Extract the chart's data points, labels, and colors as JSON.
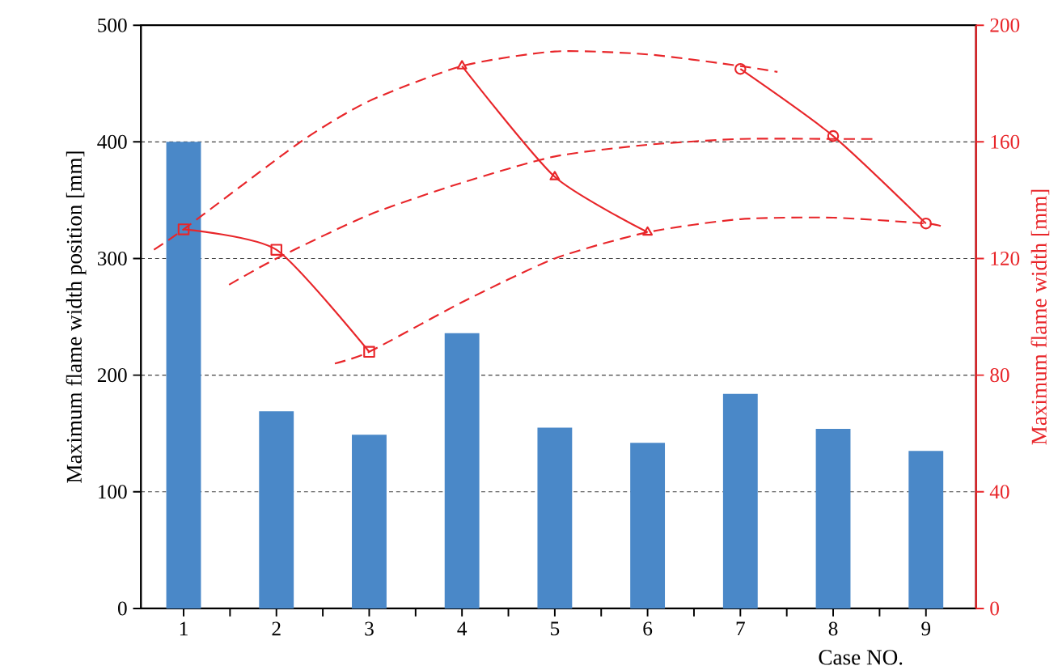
{
  "chart_data": {
    "type": "bar",
    "xlabel": "Case NO.",
    "ylabel": "Maximum flame width position  [mm]",
    "y2label": "Maximum flame width [mm]",
    "x": [
      1,
      2,
      3,
      4,
      5,
      6,
      7,
      8,
      9
    ],
    "xlim": [
      0.54,
      9.54
    ],
    "xticks": [
      1,
      2,
      3,
      4,
      5,
      6,
      7,
      8,
      9,
      {
        "value": 1.5,
        "label": null
      },
      {
        "value": 2.5,
        "label": null
      },
      {
        "value": 3.5,
        "label": null
      },
      {
        "value": 4.5,
        "label": null
      },
      {
        "value": 5.5,
        "label": null
      },
      {
        "value": 6.5,
        "label": null
      },
      {
        "value": 7.5,
        "label": null
      },
      {
        "value": 8.5,
        "label": null
      }
    ],
    "ylim": [
      0,
      500
    ],
    "yticks": [
      0,
      100,
      200,
      300,
      400,
      500
    ],
    "y2lim": [
      0,
      200
    ],
    "y2ticks": [
      0,
      40,
      80,
      120,
      160,
      200
    ],
    "grid": "y",
    "series": [
      {
        "color": "#4a88c8",
        "values": [
          400,
          169,
          149,
          236,
          155,
          142,
          184,
          154,
          135
        ]
      },
      {
        "type": "line",
        "axis": "y2",
        "color": "#e8262a",
        "marker": "square",
        "line_style": "solid",
        "x": [
          1,
          2,
          3
        ],
        "values": [
          130,
          123,
          88
        ]
      },
      {
        "type": "line",
        "axis": "y2",
        "color": "#e8262a",
        "marker": "triangle",
        "line_style": "solid",
        "x": [
          4,
          5,
          6
        ],
        "values": [
          186,
          148,
          129
        ]
      },
      {
        "type": "line",
        "axis": "y2",
        "color": "#e8262a",
        "marker": "circle",
        "line_style": "solid",
        "x": [
          7,
          8,
          9
        ],
        "values": [
          185,
          162,
          132
        ]
      },
      {
        "type": "line",
        "axis": "y2",
        "color": "#e8262a",
        "marker": "none",
        "line_style": "dashed",
        "x": [
          0.68,
          1,
          2.26,
          3,
          4,
          5,
          6,
          7,
          7.4
        ],
        "values": [
          123,
          130,
          160,
          174,
          186,
          191,
          190,
          186,
          184
        ]
      },
      {
        "type": "line",
        "axis": "y2",
        "color": "#e8262a",
        "marker": "none",
        "line_style": "dashed",
        "x": [
          1.49,
          2,
          3,
          4,
          5,
          6,
          7,
          8,
          8.45
        ],
        "values": [
          111,
          120,
          135,
          146,
          155,
          159,
          161,
          161,
          161
        ]
      },
      {
        "type": "line",
        "axis": "y2",
        "color": "#e8262a",
        "marker": "none",
        "line_style": "dashed",
        "x": [
          2.63,
          3,
          4,
          5,
          6,
          7,
          8,
          9,
          9.17
        ],
        "values": [
          84,
          88,
          105,
          120,
          129,
          133.5,
          134,
          132,
          131
        ]
      }
    ]
  }
}
